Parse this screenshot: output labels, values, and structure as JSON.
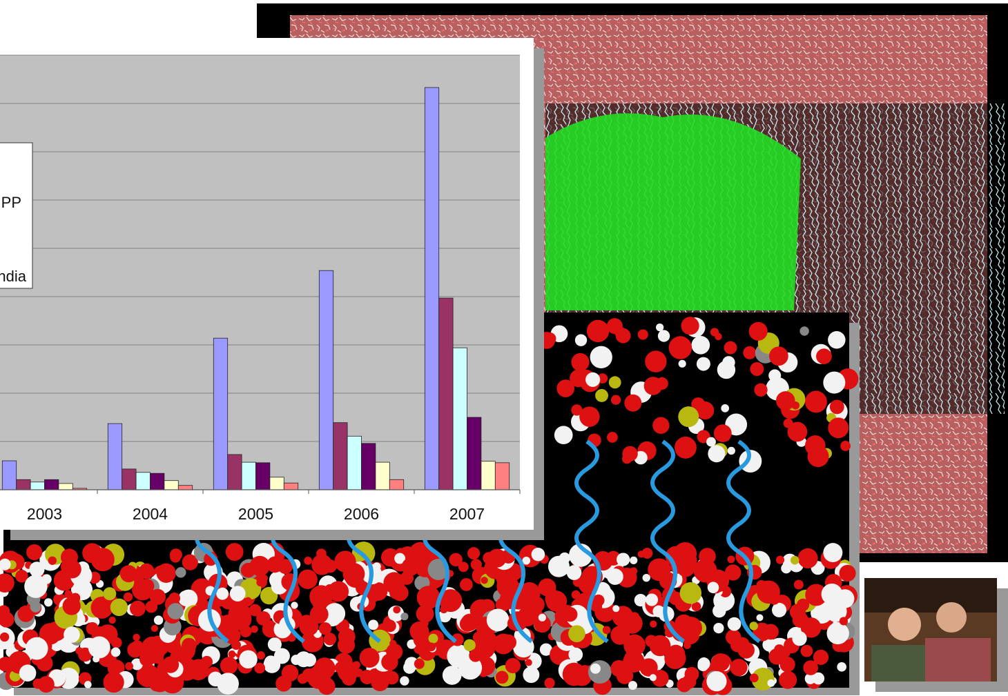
{
  "chart_data": {
    "type": "bar",
    "categories": [
      "2003",
      "2004",
      "2005",
      "2006",
      "2007"
    ],
    "series": [
      {
        "color": "#9999ff",
        "values": [
          0.6,
          1.37,
          3.14,
          4.54,
          8.33
        ]
      },
      {
        "color": "#993366",
        "values": [
          0.21,
          0.43,
          0.73,
          1.39,
          3.97
        ]
      },
      {
        "color": "#ccffff",
        "values": [
          0.16,
          0.36,
          0.57,
          1.11,
          2.94
        ]
      },
      {
        "color": "#660066",
        "values": [
          0.21,
          0.34,
          0.56,
          0.96,
          1.5
        ]
      },
      {
        "color": "#ffffcc",
        "values": [
          0.13,
          0.19,
          0.26,
          0.57,
          0.59
        ]
      },
      {
        "color": "#ff8080",
        "values": [
          0.03,
          0.09,
          0.14,
          0.21,
          0.56
        ]
      }
    ],
    "legend_fragments": [
      "PP",
      "ndia"
    ],
    "ylim": [
      0,
      9
    ],
    "yticks": [
      0,
      1,
      2,
      3,
      4,
      5,
      6,
      7,
      8,
      9
    ],
    "grid": true
  }
}
